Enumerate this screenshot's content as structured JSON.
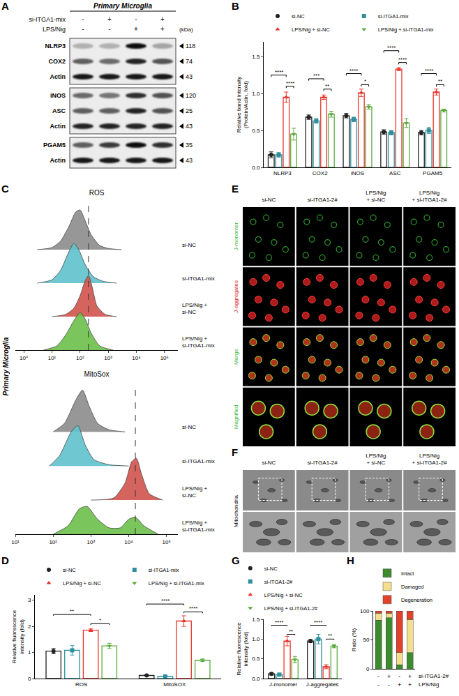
{
  "chart_data": [
    {
      "panel": "B",
      "type": "bar",
      "ylabel": "Relative band intensity\n(Protein/Actin, fold)",
      "categories": [
        "NLRP3",
        "COX2",
        "iNOS",
        "ASC",
        "PGAM5"
      ],
      "ylim": [
        0,
        1.7
      ],
      "yticks": [
        {
          "value": 0,
          "label": "0.0"
        },
        {
          "value": 0.5,
          "label": "0.5"
        },
        {
          "value": 1,
          "label": "1.0"
        },
        {
          "value": 1.5,
          "label": "1.5"
        }
      ],
      "grid": false,
      "legend": "top",
      "series": [
        {
          "name": "si-NC",
          "color": "#222222",
          "marker": "circle",
          "values": [
            0.17,
            0.68,
            0.7,
            0.48,
            0.47
          ],
          "errors": [
            0.04,
            0.03,
            0.03,
            0.03,
            0.03
          ]
        },
        {
          "name": "si-ITGA1-mix",
          "color": "#2f8f9d",
          "marker": "square",
          "values": [
            0.17,
            0.63,
            0.65,
            0.47,
            0.5
          ],
          "errors": [
            0.03,
            0.03,
            0.03,
            0.03,
            0.04
          ]
        },
        {
          "name": "LPS/Nig + si-NC",
          "color": "#e8332a",
          "marker": "triangle-up",
          "values": [
            0.95,
            0.95,
            1.01,
            1.33,
            1.02
          ],
          "errors": [
            0.07,
            0.03,
            0.05,
            0.02,
            0.04
          ]
        },
        {
          "name": "LPS/Nig + si-ITGA1-mix",
          "color": "#5aab3c",
          "marker": "triangle-down",
          "values": [
            0.45,
            0.72,
            0.82,
            0.6,
            0.77
          ],
          "errors": [
            0.08,
            0.04,
            0.03,
            0.06,
            0.02
          ]
        }
      ],
      "significance": [
        {
          "category": "NLRP3",
          "from": 0,
          "to": 2,
          "y": 1.25,
          "label": "****"
        },
        {
          "category": "NLRP3",
          "from": 2,
          "to": 3,
          "y": 1.1,
          "label": "****"
        },
        {
          "category": "COX2",
          "from": 0,
          "to": 2,
          "y": 1.2,
          "label": "***"
        },
        {
          "category": "COX2",
          "from": 2,
          "to": 3,
          "y": 1.06,
          "label": "**"
        },
        {
          "category": "iNOS",
          "from": 0,
          "to": 2,
          "y": 1.27,
          "label": "****"
        },
        {
          "category": "iNOS",
          "from": 2,
          "to": 3,
          "y": 1.12,
          "label": "*"
        },
        {
          "category": "ASC",
          "from": 0,
          "to": 2,
          "y": 1.58,
          "label": "****"
        },
        {
          "category": "ASC",
          "from": 2,
          "to": 3,
          "y": 1.42,
          "label": "****"
        },
        {
          "category": "PGAM5",
          "from": 0,
          "to": 2,
          "y": 1.27,
          "label": "****"
        },
        {
          "category": "PGAM5",
          "from": 2,
          "to": 3,
          "y": 1.12,
          "label": "**"
        }
      ]
    },
    {
      "panel": "C",
      "type": "density_ridges",
      "title": "ROS",
      "side_label": "Primary Microglia",
      "log": "x",
      "xlim": [
        0.5,
        300000
      ],
      "xticks": [
        {
          "value": 1,
          "label": "10⁰"
        },
        {
          "value": 10,
          "label": "10¹"
        },
        {
          "value": 100,
          "label": "10²"
        },
        {
          "value": 1000,
          "label": "10³"
        },
        {
          "value": 10000,
          "label": "10⁴"
        },
        {
          "value": 100000,
          "label": "10⁵"
        }
      ],
      "reference_line": 200,
      "series": [
        {
          "name": "si-NC",
          "color": "#8c8c8c",
          "x": [
            3,
            10,
            20,
            40,
            70,
            100,
            150,
            250,
            500,
            1000,
            3000
          ],
          "values": [
            0,
            0.05,
            0.2,
            0.55,
            0.9,
            0.95,
            0.7,
            0.35,
            0.1,
            0.03,
            0
          ]
        },
        {
          "name": "si-ITGA1-mix",
          "color": "#5fc2cc",
          "x": [
            3,
            10,
            20,
            40,
            60,
            90,
            150,
            300,
            700,
            2000
          ],
          "values": [
            0,
            0.08,
            0.3,
            0.75,
            0.95,
            0.8,
            0.45,
            0.15,
            0.04,
            0
          ]
        },
        {
          "name": "LPS/Nig + si-NC",
          "color": "#d0534d",
          "x": [
            10,
            30,
            60,
            100,
            150,
            200,
            260,
            400,
            800,
            2000
          ],
          "values": [
            0,
            0.05,
            0.2,
            0.5,
            0.85,
            0.98,
            0.75,
            0.25,
            0.05,
            0
          ]
        },
        {
          "name": "LPS/Nig + si-ITGA1-mix",
          "color": "#6cc04a",
          "x": [
            5,
            15,
            30,
            60,
            100,
            150,
            250,
            500,
            1500
          ],
          "values": [
            0,
            0.1,
            0.35,
            0.7,
            0.9,
            0.75,
            0.4,
            0.1,
            0
          ]
        }
      ]
    },
    {
      "panel": "C",
      "type": "density_ridges",
      "title": "MitoSox",
      "log": "x",
      "xlim": [
        10,
        200000
      ],
      "xticks": [
        {
          "value": 10,
          "label": "10¹"
        },
        {
          "value": 100,
          "label": "10²"
        },
        {
          "value": 1000,
          "label": "10³"
        },
        {
          "value": 10000,
          "label": "10⁴"
        },
        {
          "value": 100000,
          "label": "10⁵"
        }
      ],
      "reference_line": 15000,
      "series": [
        {
          "name": "si-NC",
          "color": "#8c8c8c",
          "x": [
            100,
            200,
            400,
            600,
            900,
            1500,
            3000,
            8000
          ],
          "values": [
            0,
            0.2,
            0.75,
            0.98,
            0.6,
            0.2,
            0.05,
            0
          ]
        },
        {
          "name": "si-ITGA1-mix",
          "color": "#5fc2cc",
          "x": [
            80,
            150,
            300,
            450,
            700,
            1200,
            3000,
            10000
          ],
          "values": [
            0,
            0.25,
            0.8,
            0.95,
            0.5,
            0.15,
            0.03,
            0
          ]
        },
        {
          "name": "LPS/Nig + si-NC",
          "color": "#d0534d",
          "x": [
            1000,
            4000,
            8000,
            12000,
            16000,
            22000,
            35000,
            80000
          ],
          "values": [
            0,
            0.05,
            0.4,
            0.9,
            0.98,
            0.6,
            0.15,
            0
          ]
        },
        {
          "name": "LPS/Nig + si-ITGA1-mix",
          "color": "#6cc04a",
          "x": [
            100,
            250,
            500,
            800,
            1500,
            3000,
            6000,
            10000,
            15000,
            25000,
            60000
          ],
          "values": [
            0,
            0.2,
            0.6,
            0.65,
            0.35,
            0.15,
            0.15,
            0.35,
            0.4,
            0.2,
            0
          ]
        }
      ]
    },
    {
      "panel": "D",
      "type": "bar",
      "ylabel": "Relative fluorescence\nintensity (fold)",
      "categories": [
        "ROS",
        "MitoSOX"
      ],
      "ylim": [
        0,
        3.2
      ],
      "yticks": [
        0,
        1,
        2,
        3
      ],
      "grid": false,
      "legend": "top",
      "series": [
        {
          "name": "si-NC",
          "color": "#222222",
          "marker": "circle",
          "values": [
            1.05,
            0.12
          ],
          "errors": [
            0.1,
            0.03
          ]
        },
        {
          "name": "si-ITGA1-mix",
          "color": "#2f8f9d",
          "marker": "square",
          "values": [
            1.08,
            0.08
          ],
          "errors": [
            0.18,
            0.02
          ]
        },
        {
          "name": "LPS/Nig + si-NC",
          "color": "#e8332a",
          "marker": "triangle-up",
          "values": [
            1.85,
            2.2
          ],
          "errors": [
            0.05,
            0.2
          ]
        },
        {
          "name": "LPS/Nig + si-ITGA1-mix",
          "color": "#5aab3c",
          "marker": "triangle-down",
          "values": [
            1.25,
            0.7
          ],
          "errors": [
            0.1,
            0.05
          ]
        }
      ],
      "significance": [
        {
          "category": "ROS",
          "from": 0,
          "to": 2,
          "y": 2.45,
          "label": "**"
        },
        {
          "category": "ROS",
          "from": 2,
          "to": 3,
          "y": 2.1,
          "label": "*"
        },
        {
          "category": "MitoSOX",
          "from": 0,
          "to": 2,
          "y": 2.85,
          "label": "****"
        },
        {
          "category": "MitoSOX",
          "from": 2,
          "to": 3,
          "y": 2.55,
          "label": "****"
        }
      ]
    },
    {
      "panel": "G",
      "type": "bar",
      "ylabel": "Relative fluorescence\nintensity (fold)",
      "categories": [
        "J-monomer",
        "J-aggregates"
      ],
      "ylim": [
        0,
        1.5
      ],
      "yticks": [
        {
          "value": 0,
          "label": "0.0"
        },
        {
          "value": 0.5,
          "label": "0.5"
        },
        {
          "value": 1,
          "label": "1.0"
        },
        {
          "value": 1.5,
          "label": "1.5"
        }
      ],
      "grid": false,
      "legend": "top",
      "series": [
        {
          "name": "si-NC",
          "color": "#222222",
          "marker": "circle",
          "values": [
            0.12,
            0.95
          ],
          "errors": [
            0.03,
            0.04
          ]
        },
        {
          "name": "si-ITGA1-2#",
          "color": "#2f8f9d",
          "marker": "square",
          "values": [
            0.1,
            1.0
          ],
          "errors": [
            0.02,
            0.12
          ]
        },
        {
          "name": "LPS/Nig + si-NC",
          "color": "#e8332a",
          "marker": "triangle-up",
          "values": [
            0.95,
            0.3
          ],
          "errors": [
            0.12,
            0.05
          ]
        },
        {
          "name": "LPS/Nig + si-ITGA1-2#",
          "color": "#5aab3c",
          "marker": "triangle-down",
          "values": [
            0.48,
            0.82
          ],
          "errors": [
            0.08,
            0.04
          ]
        }
      ],
      "significance": [
        {
          "category": "J-monomer",
          "from": 0,
          "to": 2,
          "y": 1.35,
          "label": "****"
        },
        {
          "category": "J-monomer",
          "from": 2,
          "to": 3,
          "y": 1.12,
          "label": "**"
        },
        {
          "category": "J-aggregates",
          "from": 0,
          "to": 2,
          "y": 1.35,
          "label": "****"
        },
        {
          "category": "J-aggregates",
          "from": 2,
          "to": 3,
          "y": 1.0,
          "label": "**"
        }
      ]
    },
    {
      "panel": "H",
      "type": "bar",
      "stacked": true,
      "categories": [
        null,
        null,
        null,
        null
      ],
      "ylabel": "Ratio (%)",
      "ylim": [
        0,
        100
      ],
      "yticks": [
        0,
        50,
        100
      ],
      "grid": false,
      "legend": "top",
      "series": [
        {
          "name": "Intact",
          "color": "#3c8c2e",
          "values": [
            84,
            88,
            7,
            28
          ]
        },
        {
          "name": "Damaged",
          "color": "#f3df8e",
          "values": [
            12,
            8,
            21,
            57
          ]
        },
        {
          "name": "Degeneration",
          "color": "#e2412b",
          "values": [
            4,
            4,
            72,
            15
          ]
        }
      ],
      "conditions": [
        {
          "name": "si-ITGA1-2#",
          "marks": [
            "-",
            "+",
            "-",
            "+"
          ]
        },
        {
          "name": "LPS/Nig",
          "marks": [
            "-",
            "-",
            "+",
            "+"
          ]
        }
      ]
    }
  ],
  "blot": {
    "panel": "A",
    "title": "Primary Microglia",
    "unit_label": "(kDa)",
    "conditions": [
      {
        "name": "si-ITGA1-mix",
        "marks": [
          "-",
          "+",
          "-",
          "+"
        ]
      },
      {
        "name": "LPS/Nig",
        "marks": [
          "-",
          "-",
          "+",
          "+"
        ]
      }
    ],
    "groups": [
      [
        {
          "protein": "NLRP3",
          "kda": 118,
          "band_intensity": [
            0.25,
            0.25,
            0.95,
            0.3
          ]
        },
        {
          "protein": "COX2",
          "kda": 74,
          "band_intensity": [
            0.6,
            0.55,
            0.85,
            0.65
          ]
        },
        {
          "protein": "Actin",
          "kda": 43,
          "band_intensity": [
            0.9,
            0.9,
            0.9,
            0.9
          ]
        }
      ],
      [
        {
          "protein": "iNOS",
          "kda": 120,
          "band_intensity": [
            0.55,
            0.5,
            0.8,
            0.65
          ]
        },
        {
          "protein": "ASC",
          "kda": 25,
          "band_intensity": [
            0.6,
            0.6,
            0.85,
            0.65
          ]
        },
        {
          "protein": "Actin",
          "kda": 43,
          "band_intensity": [
            0.85,
            0.85,
            0.85,
            0.85
          ]
        }
      ],
      [
        {
          "protein": "PGAM5",
          "kda": 35,
          "band_intensity": [
            0.6,
            0.75,
            0.95,
            0.8
          ]
        },
        {
          "protein": "Actin",
          "kda": 43,
          "band_intensity": [
            0.9,
            0.9,
            0.9,
            0.9
          ]
        }
      ]
    ]
  },
  "microscopy": {
    "panel": "E",
    "columns": [
      "si-NC",
      "si-ITGA1-2#",
      "LPS/Nig + si-NC",
      "LPS/Nig + si-ITGA1-2#"
    ],
    "rows": [
      {
        "name": "J-monomer",
        "color": "#2eb82e"
      },
      {
        "name": "J-aggregates",
        "color": "#e02020"
      },
      {
        "name": "Merge",
        "color": "#2eb82e"
      },
      {
        "name": "Magnified",
        "color": "#2eb82e"
      }
    ]
  },
  "tem": {
    "panel": "F",
    "columns": [
      "si-NC",
      "si-ITGA1-2#",
      "LPS/Nig + si-NC",
      "LPS/Nig + si-ITGA1-2#"
    ],
    "row_label": "Mitochondria"
  }
}
